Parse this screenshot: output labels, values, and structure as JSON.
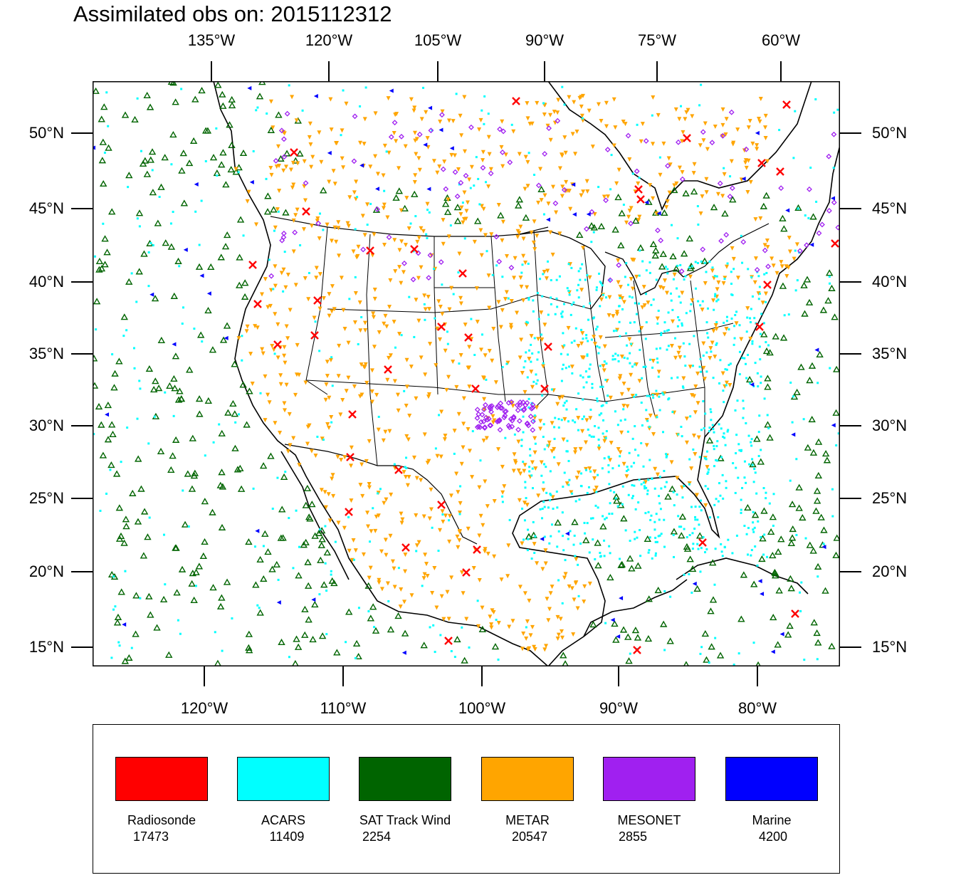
{
  "title": "Assimilated obs on: 2015112312",
  "top_axis": {
    "labels": [
      "135°W",
      "120°W",
      "105°W",
      "90°W",
      "75°W",
      "60°W"
    ]
  },
  "bottom_axis": {
    "labels": [
      "120°W",
      "110°W",
      "100°W",
      "90°W",
      "80°W"
    ]
  },
  "lat_axis": {
    "labels": [
      "50°N",
      "45°N",
      "40°N",
      "35°N",
      "30°N",
      "25°N",
      "20°N",
      "15°N"
    ]
  },
  "legend": [
    {
      "name": "Radiosonde",
      "count": "17473",
      "color": "#ff0000",
      "marker": "x-icon"
    },
    {
      "name": "ACARS",
      "count": "11409",
      "color": "#00ffff",
      "marker": "dot-icon"
    },
    {
      "name": "SAT Track Wind",
      "count": "2254",
      "color": "#006400",
      "marker": "triangle-up-icon"
    },
    {
      "name": "METAR",
      "count": "20547",
      "color": "#ffa500",
      "marker": "triangle-down-icon"
    },
    {
      "name": "MESONET",
      "count": "2855",
      "color": "#a020f0",
      "marker": "diamond-icon"
    },
    {
      "name": "Marine",
      "count": "4200",
      "color": "#0000ff",
      "marker": "triangle-left-icon"
    }
  ]
}
